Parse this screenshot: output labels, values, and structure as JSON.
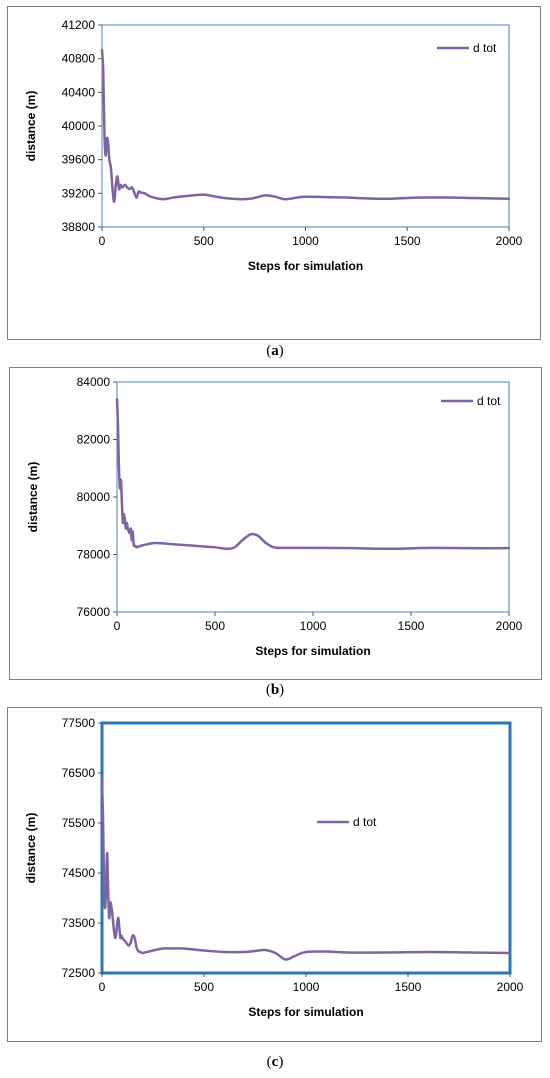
{
  "captions": [
    {
      "open": "(",
      "letter": "a",
      "close": ")"
    },
    {
      "open": "(",
      "letter": "b",
      "close": ")"
    },
    {
      "open": "(",
      "letter": "c",
      "close": ")"
    }
  ],
  "colors": {
    "line": "#8064a2",
    "frame": "#4f81bd",
    "panel_border": "#808080"
  },
  "chart_data": [
    {
      "type": "line",
      "xlabel": "Steps for simulation",
      "ylabel": "distance  (m)",
      "xlim": [
        0,
        2000
      ],
      "ylim": [
        38800,
        41200
      ],
      "xticks": [
        0,
        500,
        1000,
        1500,
        2000
      ],
      "yticks": [
        38800,
        39200,
        39600,
        40000,
        40400,
        40800,
        41200
      ],
      "grid": false,
      "legend": "top-right",
      "series": [
        {
          "name": "d tot",
          "x": [
            0,
            6,
            12,
            18,
            24,
            30,
            36,
            44,
            52,
            60,
            68,
            76,
            84,
            92,
            100,
            112,
            124,
            136,
            148,
            160,
            170,
            180,
            190,
            210,
            240,
            300,
            350,
            420,
            500,
            560,
            620,
            690,
            740,
            800,
            850,
            900,
            960,
            1000,
            1100,
            1200,
            1300,
            1400,
            1500,
            1600,
            1700,
            1800,
            1900,
            2000
          ],
          "y": [
            40900,
            40650,
            39900,
            39650,
            39850,
            39800,
            39600,
            39500,
            39250,
            39100,
            39300,
            39400,
            39250,
            39300,
            39270,
            39300,
            39270,
            39250,
            39270,
            39200,
            39150,
            39220,
            39210,
            39200,
            39160,
            39130,
            39150,
            39170,
            39185,
            39160,
            39140,
            39130,
            39140,
            39175,
            39160,
            39130,
            39150,
            39160,
            39155,
            39150,
            39140,
            39135,
            39145,
            39150,
            39150,
            39145,
            39140,
            39135
          ]
        }
      ]
    },
    {
      "type": "line",
      "xlabel": "Steps for simulation",
      "ylabel": "distance  (m)",
      "xlim": [
        0,
        2000
      ],
      "ylim": [
        76000,
        84000
      ],
      "xticks": [
        0,
        500,
        1000,
        1500,
        2000
      ],
      "yticks": [
        76000,
        78000,
        80000,
        82000,
        84000
      ],
      "grid": false,
      "legend": "top-right",
      "series": [
        {
          "name": "d tot",
          "x": [
            0,
            5,
            10,
            15,
            20,
            25,
            30,
            35,
            40,
            45,
            50,
            55,
            60,
            65,
            70,
            75,
            80,
            85,
            90,
            95,
            100,
            120,
            150,
            200,
            300,
            400,
            500,
            560,
            600,
            640,
            680,
            700,
            720,
            760,
            800,
            850,
            900,
            1000,
            1200,
            1400,
            1600,
            1800,
            2000
          ],
          "y": [
            83400,
            82500,
            81000,
            80300,
            80600,
            79800,
            79100,
            79400,
            79200,
            78900,
            79100,
            78900,
            78800,
            78750,
            78900,
            78500,
            78800,
            78350,
            78300,
            78300,
            78250,
            78300,
            78350,
            78400,
            78350,
            78300,
            78250,
            78200,
            78250,
            78500,
            78700,
            78700,
            78650,
            78400,
            78250,
            78230,
            78230,
            78230,
            78220,
            78200,
            78230,
            78220,
            78220
          ]
        }
      ]
    },
    {
      "type": "line",
      "xlabel": "Steps for simulation",
      "ylabel": "distance  (m)",
      "xlim": [
        0,
        2000
      ],
      "ylim": [
        72500,
        77500
      ],
      "xticks": [
        0,
        500,
        1000,
        1500,
        2000
      ],
      "yticks": [
        72500,
        73500,
        74500,
        75500,
        76500,
        77500
      ],
      "grid": false,
      "legend": "center",
      "series": [
        {
          "name": "d tot",
          "x": [
            0,
            5,
            10,
            15,
            20,
            25,
            30,
            35,
            40,
            45,
            50,
            55,
            60,
            65,
            70,
            75,
            80,
            85,
            90,
            95,
            100,
            110,
            120,
            130,
            140,
            150,
            160,
            170,
            180,
            190,
            200,
            250,
            300,
            350,
            400,
            500,
            600,
            700,
            750,
            800,
            850,
            900,
            950,
            1000,
            1100,
            1200,
            1400,
            1600,
            1800,
            2000
          ],
          "y": [
            76400,
            75600,
            74300,
            73800,
            74200,
            74900,
            74200,
            73600,
            73900,
            73850,
            73700,
            73500,
            73300,
            73200,
            73300,
            73500,
            73600,
            73400,
            73200,
            73250,
            73200,
            73150,
            73100,
            73050,
            73100,
            73250,
            73200,
            73000,
            72930,
            72920,
            72900,
            72950,
            72990,
            72990,
            72990,
            72950,
            72920,
            72920,
            72940,
            72960,
            72900,
            72770,
            72850,
            72920,
            72930,
            72910,
            72910,
            72920,
            72910,
            72900
          ]
        }
      ]
    }
  ]
}
